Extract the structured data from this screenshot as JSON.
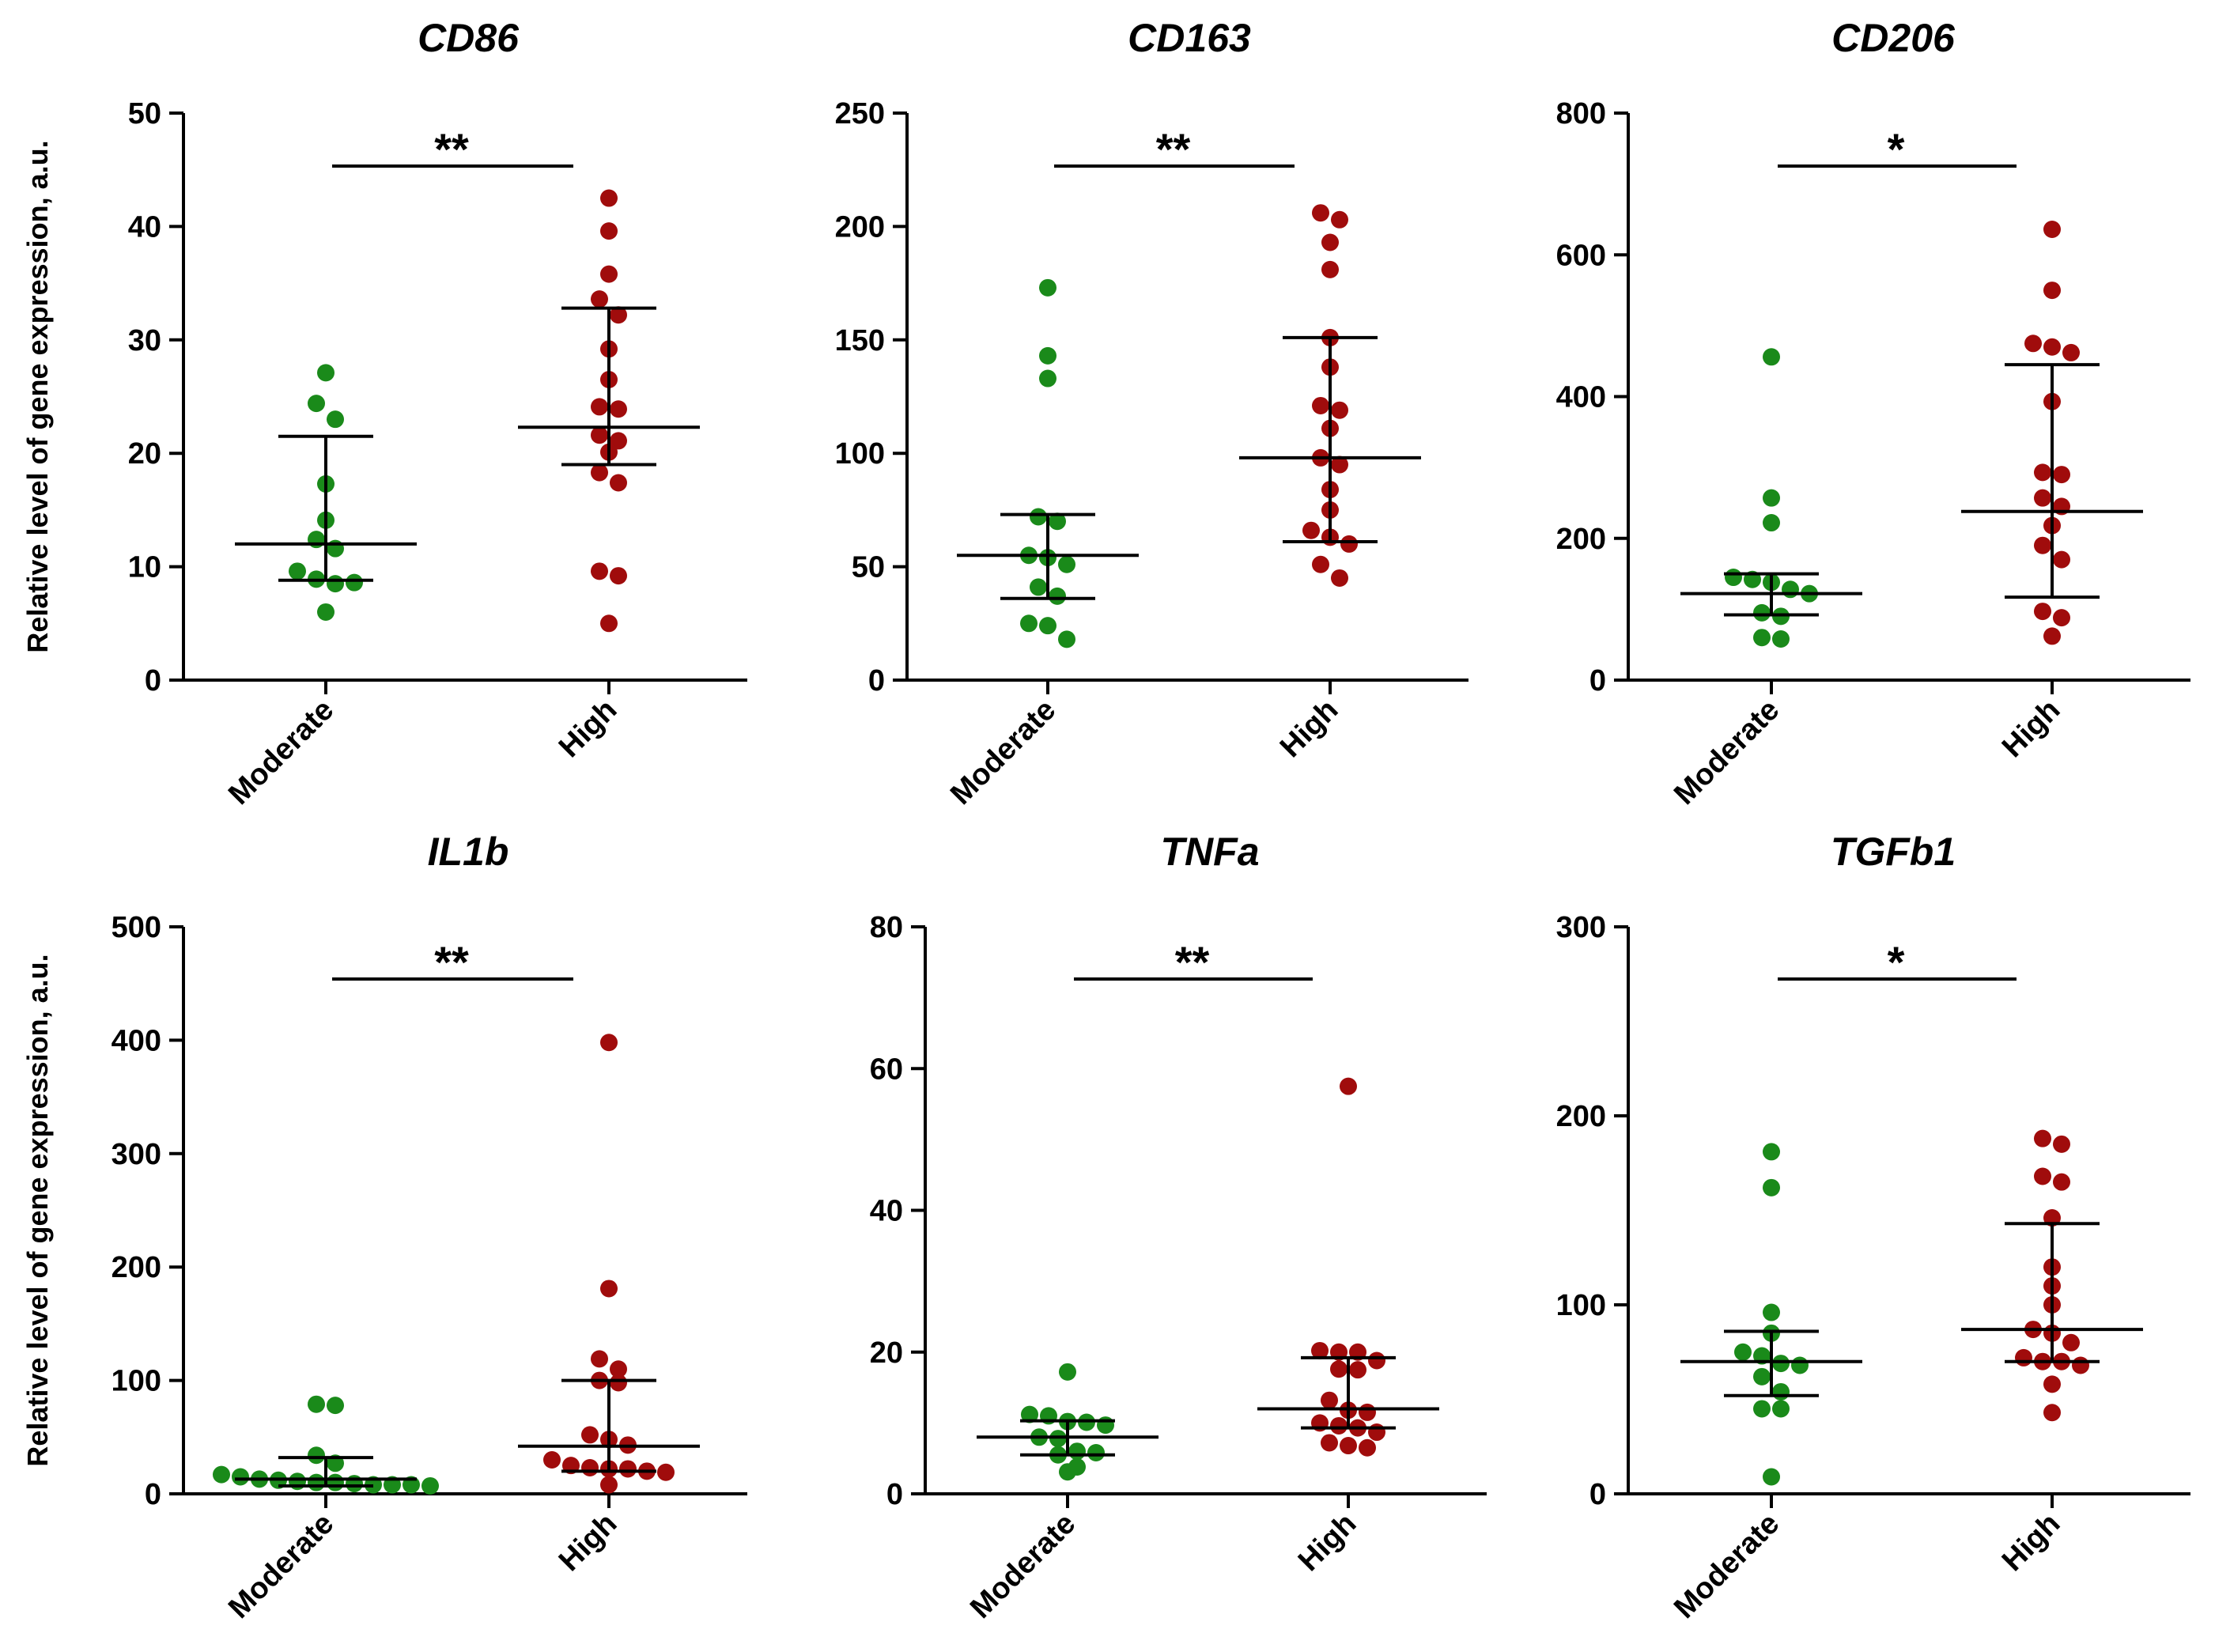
{
  "y_axis_label": "Relative level of gene expression, a.u.",
  "colors": {
    "Moderate": "#1a8a1a",
    "High": "#a00c0c",
    "axis": "#000000"
  },
  "chart_data": [
    {
      "type": "scatter",
      "title": "CD86",
      "categories": [
        "Moderate",
        "High"
      ],
      "ylim": [
        0,
        50
      ],
      "yticks": [
        0,
        10,
        20,
        30,
        40,
        50
      ],
      "ylabel": "Relative level of gene expression, a.u.",
      "significance": "**",
      "summary": {
        "Moderate": {
          "median": 12,
          "q1": 8.8,
          "q3": 21.5
        },
        "High": {
          "median": 22.3,
          "q1": 19,
          "q3": 32.8
        }
      },
      "series": [
        {
          "name": "Moderate",
          "values": [
            27.1,
            24.4,
            23,
            17.3,
            14.1,
            12.4,
            11.6,
            9.6,
            8.9,
            8.5,
            8.6,
            6
          ]
        },
        {
          "name": "High",
          "values": [
            42.5,
            39.6,
            35.8,
            33.6,
            32.2,
            29.2,
            26.5,
            24.1,
            23.9,
            21.6,
            21.1,
            20.1,
            18.3,
            17.4,
            9.6,
            9.2,
            5
          ]
        }
      ]
    },
    {
      "type": "scatter",
      "title": "CD163",
      "categories": [
        "Moderate",
        "High"
      ],
      "ylim": [
        0,
        250
      ],
      "yticks": [
        0,
        50,
        100,
        150,
        200,
        250
      ],
      "ylabel": "",
      "significance": "**",
      "summary": {
        "Moderate": {
          "median": 55,
          "q1": 36,
          "q3": 73
        },
        "High": {
          "median": 98,
          "q1": 61,
          "q3": 151
        }
      },
      "series": [
        {
          "name": "Moderate",
          "values": [
            173,
            143,
            133,
            72,
            70,
            55,
            54,
            51,
            41,
            37,
            25,
            24,
            18
          ]
        },
        {
          "name": "High",
          "values": [
            206,
            203,
            193,
            181,
            151,
            138,
            121,
            119,
            111,
            98,
            95,
            84,
            75,
            66,
            63,
            60,
            51,
            45
          ]
        }
      ]
    },
    {
      "type": "scatter",
      "title": "CD206",
      "categories": [
        "Moderate",
        "High"
      ],
      "ylim": [
        0,
        800
      ],
      "yticks": [
        0,
        200,
        400,
        600,
        800
      ],
      "ylabel": "",
      "significance": "*",
      "summary": {
        "Moderate": {
          "median": 122,
          "q1": 92,
          "q3": 150
        },
        "High": {
          "median": 238,
          "q1": 117,
          "q3": 445
        }
      },
      "series": [
        {
          "name": "Moderate",
          "values": [
            456,
            257,
            222,
            145,
            142,
            138,
            128,
            122,
            95,
            90,
            60,
            58
          ]
        },
        {
          "name": "High",
          "values": [
            636,
            550,
            475,
            470,
            462,
            393,
            293,
            290,
            257,
            245,
            218,
            190,
            170,
            97,
            88,
            62
          ]
        }
      ]
    },
    {
      "type": "scatter",
      "title": "IL1b",
      "categories": [
        "Moderate",
        "High"
      ],
      "ylim": [
        0,
        500
      ],
      "yticks": [
        0,
        100,
        200,
        300,
        400,
        500
      ],
      "ylabel": "Relative level of gene expression, a.u.",
      "significance": "**",
      "summary": {
        "Moderate": {
          "median": 13,
          "q1": 7,
          "q3": 32
        },
        "High": {
          "median": 42,
          "q1": 20,
          "q3": 100
        }
      },
      "series": [
        {
          "name": "Moderate",
          "values": [
            79,
            78,
            34,
            27,
            17,
            15,
            13,
            12,
            11,
            10,
            10,
            9,
            8,
            8,
            8,
            7
          ]
        },
        {
          "name": "High",
          "values": [
            398,
            181,
            119,
            110,
            100,
            98,
            52,
            48,
            43,
            30,
            25,
            23,
            22,
            22,
            20,
            19,
            8
          ]
        }
      ]
    },
    {
      "type": "scatter",
      "title": "TNFa",
      "categories": [
        "Moderate",
        "High"
      ],
      "ylim": [
        0,
        80
      ],
      "yticks": [
        0,
        20,
        40,
        60,
        80
      ],
      "ylabel": "",
      "significance": "**",
      "summary": {
        "Moderate": {
          "median": 8,
          "q1": 5.5,
          "q3": 10.3
        },
        "High": {
          "median": 12,
          "q1": 9.3,
          "q3": 19.2
        }
      },
      "series": [
        {
          "name": "Moderate",
          "values": [
            17.2,
            11.2,
            11,
            10.2,
            10.1,
            9.7,
            8,
            7.8,
            6,
            5.8,
            5.5,
            3.8,
            3.1
          ]
        },
        {
          "name": "High",
          "values": [
            57.5,
            20.2,
            20,
            20,
            18.8,
            17.6,
            17.5,
            13.2,
            11.8,
            11.5,
            10,
            9.6,
            9.3,
            8.7,
            7.2,
            6.8,
            6.5
          ]
        }
      ]
    },
    {
      "type": "scatter",
      "title": "TGFb1",
      "categories": [
        "Moderate",
        "High"
      ],
      "ylim": [
        0,
        300
      ],
      "yticks": [
        0,
        100,
        200,
        300
      ],
      "ylabel": "",
      "significance": "*",
      "summary": {
        "Moderate": {
          "median": 70,
          "q1": 52,
          "q3": 86
        },
        "High": {
          "median": 87,
          "q1": 70,
          "q3": 143
        }
      },
      "series": [
        {
          "name": "Moderate",
          "values": [
            181,
            162,
            96,
            85,
            75,
            73,
            69,
            68,
            62,
            54,
            45,
            45,
            9
          ]
        },
        {
          "name": "High",
          "values": [
            188,
            185,
            168,
            165,
            146,
            120,
            110,
            100,
            87,
            85,
            80,
            72,
            70,
            70,
            68,
            58,
            43
          ]
        }
      ]
    }
  ]
}
